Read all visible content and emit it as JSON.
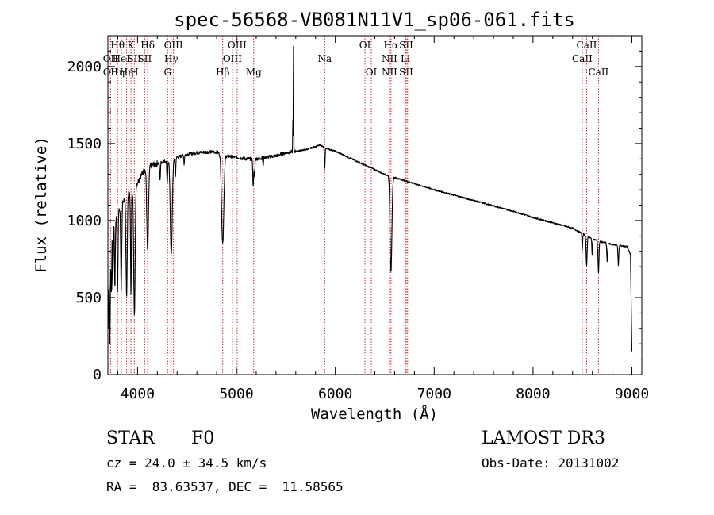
{
  "chart_data": {
    "type": "line",
    "title": "spec-56568-VB081N11V1_sp06-061.fits",
    "xlabel": "Wavelength (Å)",
    "ylabel": "Flux (relative)",
    "xlim": [
      3700,
      9100
    ],
    "ylim": [
      0,
      2200
    ],
    "xticks": [
      4000,
      5000,
      6000,
      7000,
      8000,
      9000
    ],
    "yticks": [
      0,
      500,
      1000,
      1500,
      2000
    ],
    "continuum": [
      [
        3700,
        600
      ],
      [
        3740,
        930
      ],
      [
        3800,
        1050
      ],
      [
        3850,
        1120
      ],
      [
        3900,
        1170
      ],
      [
        3950,
        1200
      ],
      [
        4000,
        1250
      ],
      [
        4050,
        1310
      ],
      [
        4100,
        1350
      ],
      [
        4200,
        1370
      ],
      [
        4300,
        1390
      ],
      [
        4400,
        1410
      ],
      [
        4500,
        1430
      ],
      [
        4600,
        1440
      ],
      [
        4700,
        1445
      ],
      [
        4800,
        1445
      ],
      [
        4900,
        1420
      ],
      [
        5000,
        1410
      ],
      [
        5100,
        1400
      ],
      [
        5200,
        1400
      ],
      [
        5300,
        1410
      ],
      [
        5400,
        1420
      ],
      [
        5500,
        1440
      ],
      [
        5600,
        1450
      ],
      [
        5700,
        1460
      ],
      [
        5800,
        1480
      ],
      [
        5850,
        1490
      ],
      [
        5900,
        1470
      ],
      [
        6000,
        1450
      ],
      [
        6100,
        1420
      ],
      [
        6200,
        1390
      ],
      [
        6300,
        1360
      ],
      [
        6400,
        1330
      ],
      [
        6500,
        1300
      ],
      [
        6600,
        1280
      ],
      [
        6700,
        1260
      ],
      [
        6800,
        1240
      ],
      [
        7000,
        1200
      ],
      [
        7200,
        1165
      ],
      [
        7400,
        1130
      ],
      [
        7600,
        1095
      ],
      [
        7800,
        1060
      ],
      [
        8000,
        1020
      ],
      [
        8200,
        985
      ],
      [
        8400,
        950
      ],
      [
        8500,
        915
      ],
      [
        8600,
        880
      ],
      [
        8700,
        860
      ],
      [
        8800,
        845
      ],
      [
        8950,
        830
      ],
      [
        8985,
        780
      ],
      [
        9000,
        150
      ]
    ],
    "absorption": [
      {
        "w": 3720,
        "depth": 550,
        "width": 6
      },
      {
        "w": 3735,
        "depth": 350,
        "width": 5
      },
      {
        "w": 3750,
        "depth": 400,
        "width": 5
      },
      {
        "w": 3771,
        "depth": 450,
        "width": 5
      },
      {
        "w": 3798,
        "depth": 500,
        "width": 6
      },
      {
        "w": 3835,
        "depth": 560,
        "width": 7
      },
      {
        "w": 3889,
        "depth": 640,
        "width": 9
      },
      {
        "w": 3933,
        "depth": 680,
        "width": 6
      },
      {
        "w": 3968,
        "depth": 820,
        "width": 10
      },
      {
        "w": 4102,
        "depth": 550,
        "width": 12
      },
      {
        "w": 4227,
        "depth": 120,
        "width": 5
      },
      {
        "w": 4300,
        "depth": 140,
        "width": 6
      },
      {
        "w": 4341,
        "depth": 620,
        "width": 14
      },
      {
        "w": 4383,
        "depth": 120,
        "width": 5
      },
      {
        "w": 4471,
        "depth": 60,
        "width": 4
      },
      {
        "w": 4861,
        "depth": 580,
        "width": 16
      },
      {
        "w": 5167,
        "depth": 110,
        "width": 5
      },
      {
        "w": 5172,
        "depth": 110,
        "width": 5
      },
      {
        "w": 5183,
        "depth": 120,
        "width": 5
      },
      {
        "w": 5270,
        "depth": 60,
        "width": 4
      },
      {
        "w": 5893,
        "depth": 140,
        "width": 5
      },
      {
        "w": 6563,
        "depth": 620,
        "width": 13
      },
      {
        "w": 8498,
        "depth": 110,
        "width": 5
      },
      {
        "w": 8542,
        "depth": 200,
        "width": 7
      },
      {
        "w": 8598,
        "depth": 100,
        "width": 5
      },
      {
        "w": 8662,
        "depth": 210,
        "width": 7
      },
      {
        "w": 8750,
        "depth": 120,
        "width": 6
      },
      {
        "w": 8863,
        "depth": 130,
        "width": 6
      }
    ],
    "emission": [
      {
        "w": 5577,
        "height": 700,
        "width": 3
      },
      {
        "w": 5570,
        "height": 200,
        "width": 2
      }
    ],
    "line_markers": [
      {
        "w": 3727,
        "labels": [
          "",
          "OII",
          "OII"
        ]
      },
      {
        "w": 3798,
        "labels": [
          "Hθ",
          "",
          "Hη"
        ]
      },
      {
        "w": 3835,
        "labels": [
          "",
          "HeI",
          ""
        ]
      },
      {
        "w": 3889,
        "labels": [
          "",
          "",
          "Hη"
        ]
      },
      {
        "w": 3933,
        "labels": [
          "K",
          "",
          ""
        ]
      },
      {
        "w": 3968,
        "labels": [
          "",
          "SII",
          "H"
        ]
      },
      {
        "w": 4072,
        "labels": [
          "",
          "SII",
          ""
        ]
      },
      {
        "w": 4102,
        "labels": [
          "Hδ",
          "",
          ""
        ]
      },
      {
        "w": 4304,
        "labels": [
          "",
          "",
          "G"
        ]
      },
      {
        "w": 4340,
        "labels": [
          "",
          "Hγ",
          ""
        ]
      },
      {
        "w": 4363,
        "labels": [
          "OIII",
          "",
          ""
        ]
      },
      {
        "w": 4861,
        "labels": [
          "",
          "",
          "Hβ"
        ]
      },
      {
        "w": 4959,
        "labels": [
          "",
          "OIII",
          ""
        ]
      },
      {
        "w": 5007,
        "labels": [
          "OIII",
          "",
          ""
        ]
      },
      {
        "w": 5175,
        "labels": [
          "",
          "",
          "Mg"
        ]
      },
      {
        "w": 5893,
        "labels": [
          "",
          "Na",
          ""
        ]
      },
      {
        "w": 6300,
        "labels": [
          "OI",
          "",
          ""
        ]
      },
      {
        "w": 6364,
        "labels": [
          "",
          "",
          "OI"
        ]
      },
      {
        "w": 6548,
        "labels": [
          "",
          "NII",
          "NII"
        ]
      },
      {
        "w": 6563,
        "labels": [
          "Hα",
          "",
          ""
        ]
      },
      {
        "w": 6584,
        "labels": [
          "",
          "",
          ""
        ]
      },
      {
        "w": 6708,
        "labels": [
          "",
          "Li",
          ""
        ]
      },
      {
        "w": 6717,
        "labels": [
          "SII",
          "",
          "SII"
        ]
      },
      {
        "w": 6731,
        "labels": [
          "",
          "",
          ""
        ]
      },
      {
        "w": 8498,
        "labels": [
          "",
          "CaII",
          ""
        ]
      },
      {
        "w": 8542,
        "labels": [
          "CaII",
          "",
          ""
        ]
      },
      {
        "w": 8662,
        "labels": [
          "",
          "",
          "CaII"
        ]
      }
    ]
  },
  "info": {
    "object_class": "STAR",
    "subclass": "F0",
    "cz": "cz = 24.0 ± 34.5 km/s",
    "coords": "RA =  83.63537, DEC =  11.58565",
    "survey": "LAMOST DR3",
    "obs_date": "Obs-Date: 20131002"
  }
}
